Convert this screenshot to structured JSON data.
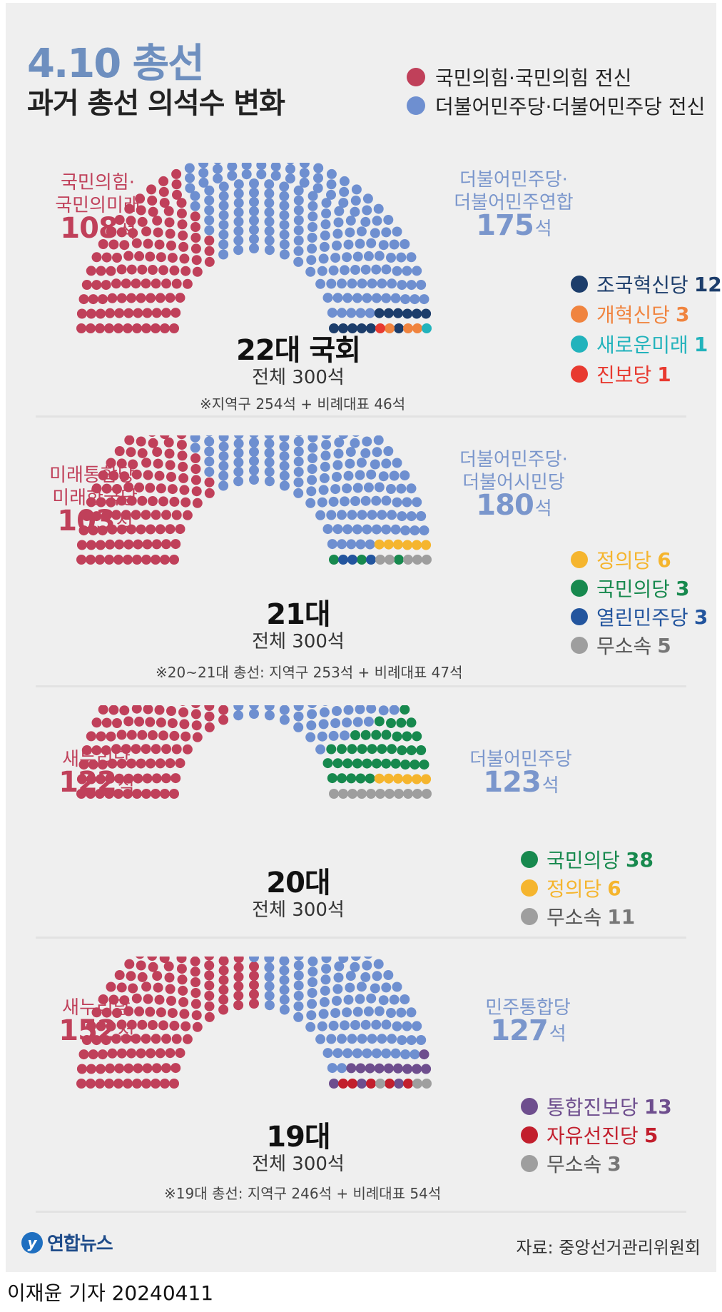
{
  "header": {
    "title_prefix": "4.10",
    "title_suffix": "총선",
    "subtitle": "과거 총선 의석수 변화"
  },
  "legend": [
    {
      "label": "국민의힘·국민의힘 전신",
      "color": "#c0405a"
    },
    {
      "label": "더불어민주당·더불어민주당 전신",
      "color": "#6e8fd0"
    }
  ],
  "chart_data": [
    {
      "type": "parliament",
      "title": "22대 국회",
      "total_label": "전체 300석",
      "note": "※지역구 254석 + 비례대표 46석",
      "left_party": {
        "name_lines": [
          "국민의힘·",
          "국민의미래"
        ],
        "seats": 108,
        "seats_text": "108",
        "color": "#c0405a"
      },
      "right_party": {
        "name_lines": [
          "더불어민주당·",
          "더불어민주연합"
        ],
        "seats": 175,
        "seats_text": "175",
        "color": "#6e8fd0"
      },
      "minor_parties": [
        {
          "name": "조국혁신당",
          "seats": 12,
          "seats_text": "12",
          "color": "#1c3d6b"
        },
        {
          "name": "개혁신당",
          "seats": 3,
          "seats_text": "3",
          "color": "#f0843f"
        },
        {
          "name": "새로운미래",
          "seats": 1,
          "seats_text": "1",
          "color": "#22b3bc"
        },
        {
          "name": "진보당",
          "seats": 1,
          "seats_text": "1",
          "color": "#e83a30"
        }
      ]
    },
    {
      "type": "parliament",
      "title": "21대",
      "total_label": "전체 300석",
      "note": "※20~21대 총선: 지역구 253석 + 비례대표 47석",
      "left_party": {
        "name_lines": [
          "미래통합당·",
          "미래한국당"
        ],
        "seats": 103,
        "seats_text": "103",
        "color": "#c0405a"
      },
      "right_party": {
        "name_lines": [
          "더불어민주당·",
          "더불어시민당"
        ],
        "seats": 180,
        "seats_text": "180",
        "color": "#6e8fd0"
      },
      "minor_parties": [
        {
          "name": "정의당",
          "seats": 6,
          "seats_text": "6",
          "color": "#f5b52e"
        },
        {
          "name": "국민의당",
          "seats": 3,
          "seats_text": "3",
          "color": "#17894e"
        },
        {
          "name": "열린민주당",
          "seats": 3,
          "seats_text": "3",
          "color": "#23559e"
        },
        {
          "name": "무소속",
          "seats": 5,
          "seats_text": "5",
          "color": "#9e9e9e"
        }
      ]
    },
    {
      "type": "parliament",
      "title": "20대",
      "total_label": "전체 300석",
      "note": "",
      "left_party": {
        "name_lines": [
          "새누리당"
        ],
        "seats": 122,
        "seats_text": "122",
        "color": "#c0405a"
      },
      "right_party": {
        "name_lines": [
          "더불어민주당"
        ],
        "seats": 123,
        "seats_text": "123",
        "color": "#6e8fd0"
      },
      "minor_parties": [
        {
          "name": "국민의당",
          "seats": 38,
          "seats_text": "38",
          "color": "#17894e"
        },
        {
          "name": "정의당",
          "seats": 6,
          "seats_text": "6",
          "color": "#f5b52e"
        },
        {
          "name": "무소속",
          "seats": 11,
          "seats_text": "11",
          "color": "#9e9e9e"
        }
      ]
    },
    {
      "type": "parliament",
      "title": "19대",
      "total_label": "전체 300석",
      "note": "※19대 총선: 지역구 246석 + 비례대표 54석",
      "left_party": {
        "name_lines": [
          "새누리당"
        ],
        "seats": 152,
        "seats_text": "152",
        "color": "#c0405a"
      },
      "right_party": {
        "name_lines": [
          "민주통합당"
        ],
        "seats": 127,
        "seats_text": "127",
        "color": "#6e8fd0"
      },
      "minor_parties": [
        {
          "name": "통합진보당",
          "seats": 13,
          "seats_text": "13",
          "color": "#6e4e8e"
        },
        {
          "name": "자유선진당",
          "seats": 5,
          "seats_text": "5",
          "color": "#c21f2d"
        },
        {
          "name": "무소속",
          "seats": 3,
          "seats_text": "3",
          "color": "#9e9e9e"
        }
      ]
    }
  ],
  "seat_unit": "석",
  "footer": {
    "logo_mark": "y",
    "logo_text": "연합뉴스",
    "source": "자료: 중앙선거관리위원회",
    "byline": "이재윤 기자  20240411"
  }
}
